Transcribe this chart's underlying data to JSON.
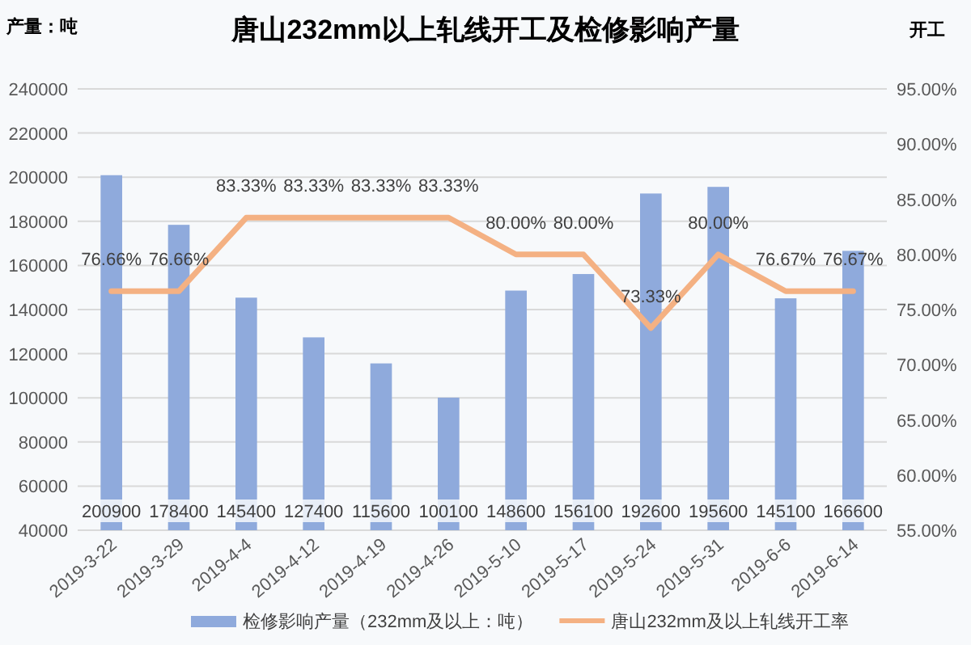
{
  "chart_data": {
    "type": "bar",
    "title": "唐山232mm以上轧线开工及检修影响产量",
    "ylabel": "产量：吨",
    "y2label": "开工",
    "categories": [
      "2019-3-22",
      "2019-3-29",
      "2019-4-4",
      "2019-4-12",
      "2019-4-19",
      "2019-4-26",
      "2019-5-10",
      "2019-5-17",
      "2019-5-24",
      "2019-5-31",
      "2019-6-6",
      "2019-6-14"
    ],
    "series": [
      {
        "name": "检修影响产量（232mm及以上：吨）",
        "color": "#8faadc",
        "values": [
          200900,
          178400,
          145400,
          127400,
          115600,
          100100,
          148600,
          156100,
          192600,
          195600,
          145100,
          166600
        ],
        "value_labels": [
          "200900",
          "178400",
          "145400",
          "127400",
          "115600",
          "100100",
          "148600",
          "156100",
          "192600",
          "195600",
          "145100",
          "166600"
        ]
      },
      {
        "name": "唐山232mm及以上轧线开工率",
        "type": "line",
        "axis": "y2",
        "color": "#f4b183",
        "values": [
          76.66,
          76.66,
          83.33,
          83.33,
          83.33,
          83.33,
          80.0,
          80.0,
          73.33,
          80.0,
          76.67,
          76.67
        ],
        "value_labels": [
          "76.66%",
          "76.66%",
          "83.33%",
          "83.33%",
          "83.33%",
          "83.33%",
          "80.00%",
          "80.00%",
          "73.33%",
          "80.00%",
          "76.67%",
          "76.67%"
        ]
      }
    ],
    "ylim": [
      40000,
      240000
    ],
    "yticks": [
      40000,
      60000,
      80000,
      100000,
      120000,
      140000,
      160000,
      180000,
      200000,
      220000,
      240000
    ],
    "y2lim": [
      55,
      95
    ],
    "y2ticks": [
      {
        "value": 55,
        "label": "55.00%"
      },
      {
        "value": 60,
        "label": "60.00%"
      },
      {
        "value": 65,
        "label": "65.00%"
      },
      {
        "value": 70,
        "label": "70.00%"
      },
      {
        "value": 75,
        "label": "75.00%"
      },
      {
        "value": 80,
        "label": "80.00%"
      },
      {
        "value": 85,
        "label": "85.00%"
      },
      {
        "value": 90,
        "label": "90.00%"
      },
      {
        "value": 95,
        "label": "95.00%"
      }
    ],
    "grid": "y",
    "legend": "bottom",
    "marker": "none",
    "line_style": "solid"
  }
}
